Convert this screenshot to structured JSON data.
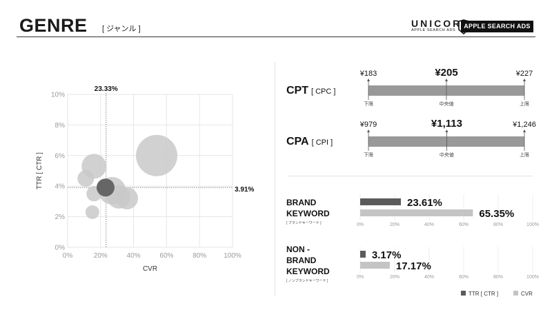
{
  "header": {
    "title": "GENRE",
    "subtitle": "[ ジャンル ]",
    "logo_text": "UNICORN",
    "logo_sub": "APPLE SEARCH ADS",
    "badge": "APPLE SEARCH ADS"
  },
  "colors": {
    "bubble_light": "#c9c9c9",
    "bubble_highlight": "#666666",
    "bar_dark": "#5b5b5b",
    "bar_light": "#c4c4c4",
    "range_bar": "#999999"
  },
  "chart_data": [
    {
      "type": "scatter",
      "xlabel": "CVR",
      "ylabel": "TTR  [ CTR ]",
      "xlim": [
        0,
        100
      ],
      "ylim": [
        0,
        10
      ],
      "x_ticks": [
        "0%",
        "20%",
        "40%",
        "60%",
        "80%",
        "100%"
      ],
      "y_ticks": [
        "0%",
        "2%",
        "4%",
        "6%",
        "8%",
        "10%"
      ],
      "grid": true,
      "reference_lines": {
        "x": 23.33,
        "x_label": "23.33%",
        "y": 3.91,
        "y_label": "3.91%"
      },
      "points": [
        {
          "x": 54,
          "y": 6.0,
          "size": 30,
          "highlight": false
        },
        {
          "x": 16,
          "y": 5.3,
          "size": 18,
          "highlight": false
        },
        {
          "x": 11,
          "y": 4.5,
          "size": 12,
          "highlight": false
        },
        {
          "x": 27,
          "y": 3.7,
          "size": 20,
          "highlight": false
        },
        {
          "x": 31,
          "y": 3.3,
          "size": 17,
          "highlight": false
        },
        {
          "x": 36,
          "y": 3.2,
          "size": 16,
          "highlight": false
        },
        {
          "x": 16,
          "y": 3.5,
          "size": 11,
          "highlight": false
        },
        {
          "x": 15,
          "y": 2.3,
          "size": 10,
          "highlight": false
        },
        {
          "x": 23,
          "y": 3.91,
          "size": 13,
          "highlight": true
        }
      ]
    },
    {
      "type": "range",
      "label": "CPT",
      "sub": "[ CPC ]",
      "min_label": "¥183",
      "median_label": "¥205",
      "max_label": "¥227",
      "min": 183,
      "median": 205,
      "max": 227,
      "low_tag": "下限",
      "mid_tag": "中央値",
      "high_tag": "上限"
    },
    {
      "type": "range",
      "label": "CPA",
      "sub": "[ CPI ]",
      "min_label": "¥979",
      "median_label": "¥1,113",
      "max_label": "¥1,246",
      "min": 979,
      "median": 1113,
      "max": 1246,
      "low_tag": "下限",
      "mid_tag": "中央値",
      "high_tag": "上限"
    },
    {
      "type": "bar",
      "title_lines": [
        "BRAND",
        "KEYWORD"
      ],
      "note": "[ ブランドキーワード ]",
      "xlim": [
        0,
        100
      ],
      "ticks": [
        "0%",
        "20%",
        "40%",
        "60%",
        "80%",
        "100%"
      ],
      "series": [
        {
          "name": "TTR [ CTR ]",
          "value": 23.61,
          "label": "23.61%"
        },
        {
          "name": "CVR",
          "value": 65.35,
          "label": "65.35%"
        }
      ]
    },
    {
      "type": "bar",
      "title_lines": [
        "NON -",
        "BRAND",
        "KEYWORD"
      ],
      "note": "[ ノンブランドキーワード ]",
      "xlim": [
        0,
        100
      ],
      "ticks": [
        "0%",
        "20%",
        "40%",
        "60%",
        "80%",
        "100%"
      ],
      "series": [
        {
          "name": "TTR [ CTR ]",
          "value": 3.17,
          "label": "3.17%"
        },
        {
          "name": "CVR",
          "value": 17.17,
          "label": "17.17%"
        }
      ]
    }
  ],
  "legend": [
    {
      "label": "TTR [ CTR ]",
      "color": "#5b5b5b"
    },
    {
      "label": "CVR",
      "color": "#c4c4c4"
    }
  ]
}
